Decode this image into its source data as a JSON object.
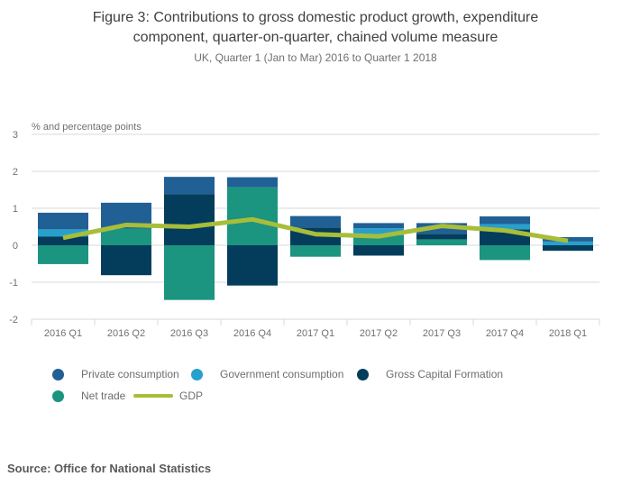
{
  "header": {
    "title": "Figure 3: Contributions to gross domestic product growth, expenditure component, quarter-on-quarter, chained volume measure",
    "subtitle": "UK, Quarter 1 (Jan to Mar) 2016 to Quarter 1 2018"
  },
  "chart_data": {
    "type": "bar",
    "stacked": true,
    "title": "Figure 3: Contributions to gross domestic product growth, expenditure component, quarter-on-quarter, chained volume measure",
    "subtitle": "UK, Quarter 1 (Jan to Mar) 2016 to Quarter 1 2018",
    "axis_unit_label": "% and percentage points",
    "categories": [
      "2016 Q1",
      "2016 Q2",
      "2016 Q3",
      "2016 Q4",
      "2017 Q1",
      "2017 Q2",
      "2017 Q3",
      "2017 Q4",
      "2018 Q1"
    ],
    "series": [
      {
        "name": "Private consumption",
        "color": "#206095",
        "values": [
          0.45,
          0.7,
          0.47,
          0.27,
          0.31,
          0.14,
          0.29,
          0.21,
          0.12
        ]
      },
      {
        "name": "Government consumption",
        "color": "#27a0cc",
        "values": [
          0.19,
          0.0,
          0.0,
          0.0,
          0.0,
          0.19,
          0.0,
          0.14,
          0.1
        ]
      },
      {
        "name": "Gross Capital Formation",
        "color": "#033d5b",
        "values": [
          0.24,
          -0.81,
          1.38,
          -1.09,
          0.48,
          -0.28,
          0.15,
          0.43,
          -0.15
        ]
      },
      {
        "name": "Net trade",
        "color": "#1b9480",
        "values": [
          -0.51,
          0.45,
          -1.48,
          1.57,
          -0.31,
          0.27,
          0.16,
          -0.4,
          0.0
        ]
      }
    ],
    "line_series": {
      "name": "GDP",
      "color": "#a8bd3a",
      "values": [
        0.2,
        0.55,
        0.5,
        0.7,
        0.3,
        0.24,
        0.52,
        0.4,
        0.12
      ]
    },
    "ylim": [
      -2,
      3
    ],
    "yticks": [
      3,
      2,
      1,
      0,
      -1,
      -2
    ],
    "grid": true,
    "gridline_color": "#d9d9d9",
    "tick_label_color": "#707071",
    "legend_position": "bottom"
  },
  "legend": {
    "items": [
      {
        "label": "Private consumption",
        "swatch": "dot",
        "color": "#206095"
      },
      {
        "label": "Government consumption",
        "swatch": "dot",
        "color": "#27a0cc"
      },
      {
        "label": "Gross Capital Formation",
        "swatch": "dot",
        "color": "#033d5b"
      },
      {
        "label": "Net trade",
        "swatch": "dot",
        "color": "#1b9480"
      },
      {
        "label": "GDP",
        "swatch": "line",
        "color": "#a8bd3a"
      }
    ]
  },
  "footer": {
    "source": "Source: Office for National Statistics"
  }
}
